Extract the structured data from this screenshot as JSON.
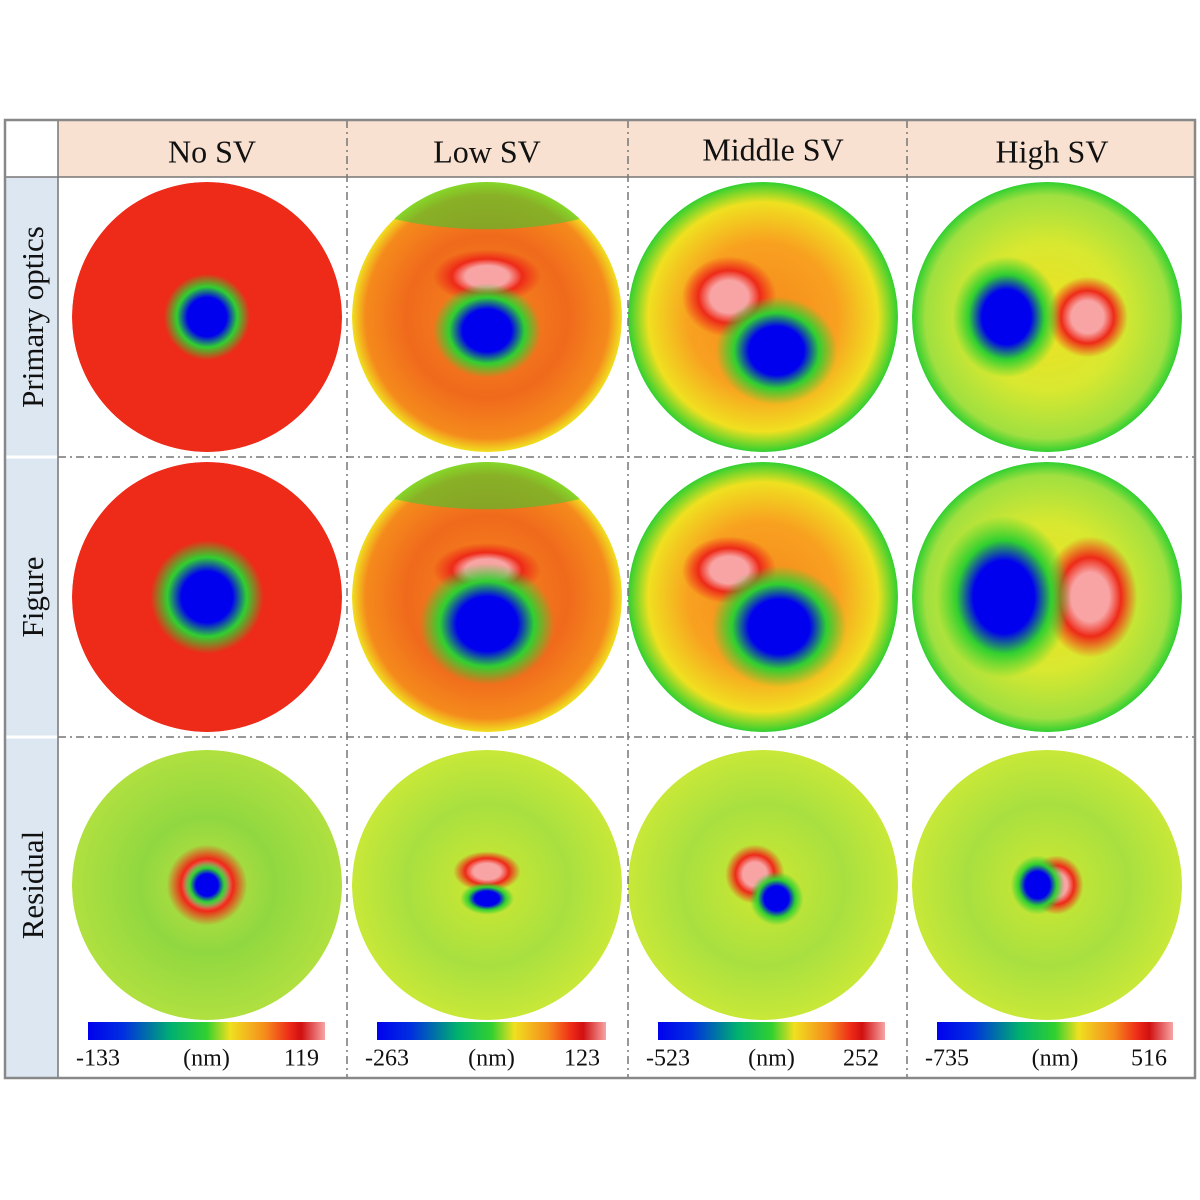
{
  "header": {
    "columns": [
      "No SV",
      "Low SV",
      "Middle SV",
      "High SV"
    ]
  },
  "rows": [
    "Primary optics",
    "Figure",
    "Residual"
  ],
  "colorbars": [
    {
      "min": -133,
      "unit": "(nm)",
      "max": 119
    },
    {
      "min": -263,
      "unit": "(nm)",
      "max": 123
    },
    {
      "min": -523,
      "unit": "(nm)",
      "max": 252
    },
    {
      "min": -735,
      "unit": "(nm)",
      "max": 516
    }
  ]
}
